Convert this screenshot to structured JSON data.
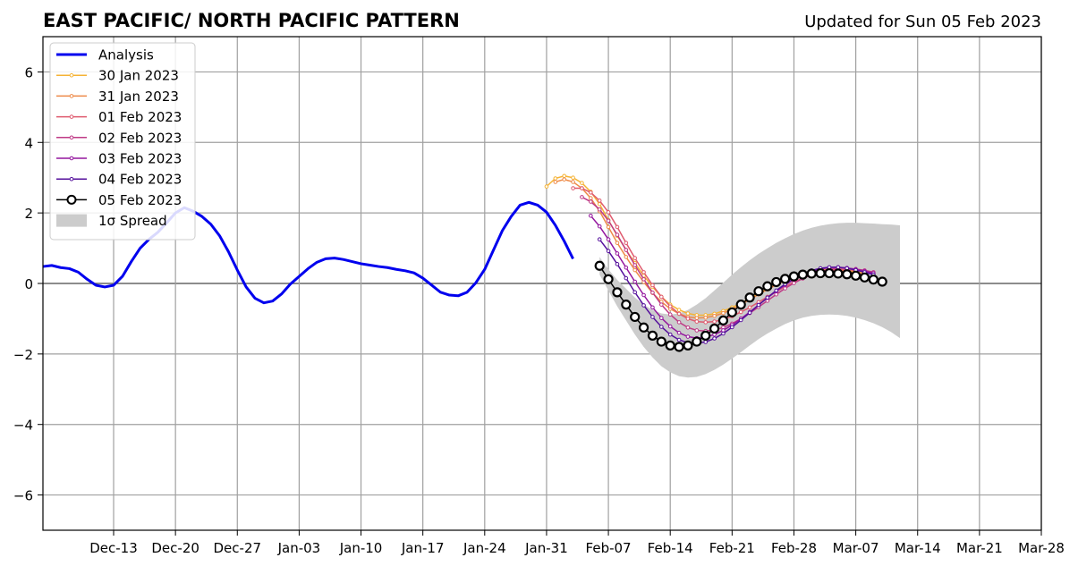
{
  "header": {
    "title": "EAST PACIFIC/ NORTH PACIFIC PATTERN",
    "updated": "Updated for Sun 05 Feb 2023"
  },
  "chart_data": {
    "type": "line",
    "title": "EAST PACIFIC/ NORTH PACIFIC PATTERN",
    "subtitle": "Updated for Sun 05 Feb 2023",
    "xlabel": "",
    "ylabel": "",
    "x_unit": "days",
    "xlim": [
      "2022-12-05",
      "2023-03-28"
    ],
    "ylim": [
      -7,
      7
    ],
    "grid": true,
    "legend_position": "top-left",
    "x_ticks": [
      {
        "date": "2022-12-13",
        "label": "Dec-13"
      },
      {
        "date": "2022-12-20",
        "label": "Dec-20"
      },
      {
        "date": "2022-12-27",
        "label": "Dec-27"
      },
      {
        "date": "2023-01-03",
        "label": "Jan-03"
      },
      {
        "date": "2023-01-10",
        "label": "Jan-10"
      },
      {
        "date": "2023-01-17",
        "label": "Jan-17"
      },
      {
        "date": "2023-01-24",
        "label": "Jan-24"
      },
      {
        "date": "2023-01-31",
        "label": "Jan-31"
      },
      {
        "date": "2023-02-07",
        "label": "Feb-07"
      },
      {
        "date": "2023-02-14",
        "label": "Feb-14"
      },
      {
        "date": "2023-02-21",
        "label": "Feb-21"
      },
      {
        "date": "2023-02-28",
        "label": "Feb-28"
      },
      {
        "date": "2023-03-07",
        "label": "Mar-07"
      },
      {
        "date": "2023-03-14",
        "label": "Mar-14"
      },
      {
        "date": "2023-03-21",
        "label": "Mar-21"
      },
      {
        "date": "2023-03-28",
        "label": "Mar-28"
      }
    ],
    "y_ticks": [
      {
        "value": 6,
        "label": "6"
      },
      {
        "value": 4,
        "label": "4"
      },
      {
        "value": 2,
        "label": "2"
      },
      {
        "value": 0,
        "label": "0"
      },
      {
        "value": -2,
        "label": "−2"
      },
      {
        "value": -4,
        "label": "−4"
      },
      {
        "value": -6,
        "label": "−6"
      }
    ],
    "series": [
      {
        "name": "Analysis",
        "color": "#0000ee",
        "style": "analysis",
        "start": "2022-12-05",
        "values": [
          0.48,
          0.51,
          0.45,
          0.42,
          0.32,
          0.12,
          -0.05,
          -0.1,
          -0.05,
          0.2,
          0.62,
          1.0,
          1.25,
          1.45,
          1.72,
          2.0,
          2.15,
          2.05,
          1.9,
          1.68,
          1.35,
          0.9,
          0.38,
          -0.1,
          -0.42,
          -0.55,
          -0.5,
          -0.3,
          -0.02,
          0.2,
          0.42,
          0.6,
          0.7,
          0.72,
          0.68,
          0.62,
          0.56,
          0.52,
          0.48,
          0.45,
          0.4,
          0.36,
          0.3,
          0.15,
          -0.05,
          -0.25,
          -0.33,
          -0.35,
          -0.25,
          0.02,
          0.4,
          0.95,
          1.5,
          1.9,
          2.22,
          2.3,
          2.22,
          2.02,
          1.65,
          1.2,
          0.7
        ]
      },
      {
        "name": "30 Jan 2023",
        "color": "#f5b335",
        "style": "forecast",
        "start": "2023-01-31",
        "values": [
          2.75,
          2.98,
          3.05,
          3.0,
          2.85,
          2.6,
          2.25,
          1.8,
          1.35,
          0.95,
          0.58,
          0.22,
          -0.1,
          -0.38,
          -0.6,
          -0.75,
          -0.85,
          -0.9,
          -0.9,
          -0.86,
          -0.78,
          -0.68,
          -0.56,
          -0.42,
          -0.28,
          -0.14,
          -0.02,
          0.1,
          0.2,
          0.28,
          0.34,
          0.38,
          0.4,
          0.4,
          0.38,
          0.34,
          0.3
        ]
      },
      {
        "name": "31 Jan 2023",
        "color": "#ee8a48",
        "style": "forecast",
        "start": "2023-02-01",
        "values": [
          2.88,
          2.95,
          2.88,
          2.7,
          2.42,
          2.05,
          1.6,
          1.15,
          0.75,
          0.38,
          0.04,
          -0.27,
          -0.52,
          -0.72,
          -0.86,
          -0.95,
          -0.98,
          -0.97,
          -0.92,
          -0.84,
          -0.73,
          -0.6,
          -0.46,
          -0.31,
          -0.17,
          -0.04,
          0.08,
          0.18,
          0.27,
          0.33,
          0.37,
          0.39,
          0.38,
          0.35,
          0.31,
          0.27
        ]
      },
      {
        "name": "01 Feb 2023",
        "color": "#df5a6e",
        "style": "forecast",
        "start": "2023-02-03",
        "values": [
          2.7,
          2.7,
          2.58,
          2.35,
          2.02,
          1.6,
          1.15,
          0.72,
          0.32,
          -0.05,
          -0.38,
          -0.65,
          -0.86,
          -1.0,
          -1.08,
          -1.1,
          -1.08,
          -1.02,
          -0.93,
          -0.81,
          -0.68,
          -0.53,
          -0.38,
          -0.23,
          -0.09,
          0.04,
          0.15,
          0.25,
          0.32,
          0.37,
          0.39,
          0.39,
          0.37,
          0.33,
          0.28
        ]
      },
      {
        "name": "02 Feb 2023",
        "color": "#bf3a86",
        "style": "forecast",
        "start": "2023-02-04",
        "values": [
          2.45,
          2.32,
          2.1,
          1.78,
          1.38,
          0.95,
          0.52,
          0.12,
          -0.26,
          -0.6,
          -0.88,
          -1.1,
          -1.25,
          -1.33,
          -1.35,
          -1.32,
          -1.25,
          -1.14,
          -1.0,
          -0.84,
          -0.67,
          -0.49,
          -0.31,
          -0.14,
          0.01,
          0.14,
          0.25,
          0.34,
          0.4,
          0.43,
          0.43,
          0.41,
          0.37,
          0.32
        ]
      },
      {
        "name": "03 Feb 2023",
        "color": "#94169e",
        "style": "forecast",
        "start": "2023-02-05",
        "values": [
          1.92,
          1.62,
          1.25,
          0.85,
          0.45,
          0.05,
          -0.33,
          -0.68,
          -0.98,
          -1.22,
          -1.4,
          -1.51,
          -1.55,
          -1.52,
          -1.45,
          -1.33,
          -1.18,
          -1.0,
          -0.81,
          -0.61,
          -0.41,
          -0.22,
          -0.04,
          0.11,
          0.24,
          0.34,
          0.41,
          0.45,
          0.46,
          0.44,
          0.4,
          0.35,
          0.29
        ]
      },
      {
        "name": "04 Feb 2023",
        "color": "#55109c",
        "style": "forecast",
        "start": "2023-02-06",
        "values": [
          1.25,
          0.92,
          0.55,
          0.15,
          -0.25,
          -0.62,
          -0.95,
          -1.23,
          -1.45,
          -1.6,
          -1.68,
          -1.7,
          -1.66,
          -1.56,
          -1.42,
          -1.24,
          -1.04,
          -0.83,
          -0.61,
          -0.4,
          -0.2,
          -0.02,
          0.14,
          0.27,
          0.37,
          0.43,
          0.46,
          0.46,
          0.43,
          0.38,
          0.32,
          0.25
        ]
      },
      {
        "name": "05 Feb 2023",
        "color": "#000000",
        "style": "current",
        "start": "2023-02-06",
        "values": [
          0.5,
          0.12,
          -0.25,
          -0.6,
          -0.95,
          -1.25,
          -1.48,
          -1.65,
          -1.76,
          -1.8,
          -1.76,
          -1.65,
          -1.48,
          -1.28,
          -1.05,
          -0.82,
          -0.6,
          -0.4,
          -0.22,
          -0.08,
          0.04,
          0.13,
          0.2,
          0.25,
          0.28,
          0.29,
          0.29,
          0.28,
          0.26,
          0.22,
          0.17,
          0.11,
          0.05
        ]
      }
    ],
    "spread": {
      "name": "1σ Spread",
      "color": "#cccccc",
      "start": "2023-02-06",
      "upper": [
        0.75,
        0.4,
        0.1,
        -0.15,
        -0.4,
        -0.6,
        -0.75,
        -0.85,
        -0.88,
        -0.85,
        -0.75,
        -0.6,
        -0.42,
        -0.2,
        0.02,
        0.25,
        0.46,
        0.66,
        0.84,
        1.0,
        1.15,
        1.28,
        1.4,
        1.5,
        1.58,
        1.64,
        1.68,
        1.71,
        1.72,
        1.72,
        1.71,
        1.7,
        1.68,
        1.67,
        1.65
      ],
      "lower": [
        0.25,
        -0.2,
        -0.65,
        -1.05,
        -1.45,
        -1.8,
        -2.1,
        -2.35,
        -2.52,
        -2.63,
        -2.67,
        -2.65,
        -2.57,
        -2.45,
        -2.3,
        -2.13,
        -1.95,
        -1.76,
        -1.58,
        -1.42,
        -1.28,
        -1.15,
        -1.05,
        -0.97,
        -0.92,
        -0.89,
        -0.88,
        -0.89,
        -0.92,
        -0.97,
        -1.04,
        -1.13,
        -1.24,
        -1.38,
        -1.55
      ]
    }
  }
}
